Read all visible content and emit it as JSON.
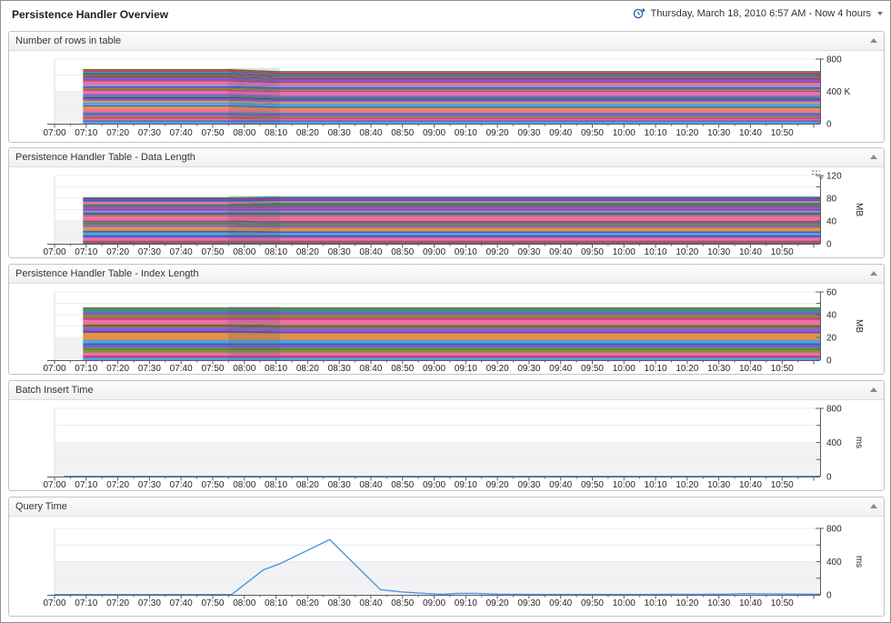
{
  "header": {
    "title": "Persistence Handler Overview",
    "timeframe": "Thursday, March 18, 2010 6:57 AM - Now 4 hours",
    "clock_icon": "clock-forward-icon"
  },
  "xaxis": {
    "labels": [
      "07:00",
      "07:10",
      "07:20",
      "07:30",
      "07:40",
      "07:50",
      "08:00",
      "08:10",
      "08:20",
      "08:30",
      "08:40",
      "08:50",
      "09:00",
      "09:10",
      "09:20",
      "09:30",
      "09:40",
      "09:50",
      "10:00",
      "10:10",
      "10:20",
      "10:30",
      "10:40",
      "10:50"
    ],
    "minor_tick_minutes": 5,
    "major_tick_minutes": 10
  },
  "panels": [
    {
      "title": "Number of rows in table",
      "chart": {
        "type": "stacked-area",
        "unit": "",
        "ymax": 800,
        "yticks": [
          [
            0,
            "0"
          ],
          [
            200,
            ""
          ],
          [
            400,
            "400 K"
          ],
          [
            600,
            ""
          ],
          [
            800,
            "800"
          ]
        ],
        "gray_to": 400,
        "data_start_min": 9,
        "transition": [
          55,
          70
        ],
        "stack_top_approx": 678,
        "stripes": [
          [
            "#4da3e8",
            28
          ],
          [
            "#5a4aa0",
            14
          ],
          [
            "#e86aa0",
            22,
            16
          ],
          [
            "#c23a7a",
            16
          ],
          [
            "#8a8a32",
            20
          ],
          [
            "#7a5ad0",
            30
          ],
          [
            "#4a8a8a",
            14
          ],
          [
            "#ee6fa5",
            36,
            26
          ],
          [
            "#e8923a",
            32
          ],
          [
            "#3a5fae",
            16
          ],
          [
            "#4da3e8",
            36,
            40
          ],
          [
            "#e8923a",
            20
          ],
          [
            "#7a5ad0",
            32,
            26
          ],
          [
            "#5a3a7a",
            14
          ],
          [
            "#2e8a6a",
            16
          ],
          [
            "#8a62c9",
            24
          ],
          [
            "#ee6fa5",
            34,
            40
          ],
          [
            "#c2408f",
            18
          ],
          [
            "#8a8a32",
            20
          ],
          [
            "#6a4ab0",
            22
          ],
          [
            "#4da3e8",
            18
          ],
          [
            "#ee6fa5",
            40,
            34
          ],
          [
            "#b43a6a",
            18
          ],
          [
            "#7a5ad0",
            32,
            30
          ],
          [
            "#9a3a4a",
            14
          ],
          [
            "#5a8a3a",
            18,
            12
          ],
          [
            "#8a3a8a",
            16
          ],
          [
            "#2e8a8a",
            20
          ],
          [
            "#c23a7a",
            20
          ],
          [
            "#6b6b2a",
            18
          ]
        ]
      }
    },
    {
      "title": "Persistence Handler Table - Data Length",
      "has_options_icon": true,
      "chart": {
        "type": "stacked-area",
        "unit": "MB",
        "ymax": 120,
        "yticks": [
          [
            0,
            "0"
          ],
          [
            20,
            ""
          ],
          [
            40,
            "40"
          ],
          [
            60,
            ""
          ],
          [
            80,
            "80"
          ],
          [
            100,
            ""
          ],
          [
            120,
            "120"
          ]
        ],
        "gray_to": 40,
        "data_start_min": 9,
        "transition": [
          55,
          70
        ],
        "stack_top_approx": 82,
        "stripes": [
          [
            "#6b6b2a",
            3
          ],
          [
            "#c2408f",
            3
          ],
          [
            "#ee6fa5",
            4
          ],
          [
            "#7a5ad0",
            3
          ],
          [
            "#4a3a6a",
            2
          ],
          [
            "#4da3e8",
            5,
            4
          ],
          [
            "#3a5fae",
            3
          ],
          [
            "#e8923a",
            6
          ],
          [
            "#8a62c9",
            4
          ],
          [
            "#5a8a3a",
            3
          ],
          [
            "#2e8a8a",
            2
          ],
          [
            "#b43a6a",
            3
          ],
          [
            "#ee6fa5",
            7,
            8
          ],
          [
            "#8a8a32",
            3
          ],
          [
            "#6a4ab0",
            4
          ],
          [
            "#4da3e8",
            3
          ],
          [
            "#c23a7a",
            3
          ],
          [
            "#7a5ad0",
            4
          ],
          [
            "#9a3a4a",
            2
          ],
          [
            "#2e8a6a",
            3,
            5
          ],
          [
            "#ee6fa5",
            4,
            3
          ],
          [
            "#3a5fae",
            3
          ],
          [
            "#8a3a8a",
            3
          ],
          [
            "#2e8a8a",
            2
          ]
        ]
      }
    },
    {
      "title": "Persistence Handler Table - Index Length",
      "chart": {
        "type": "stacked-area",
        "unit": "MB",
        "ymax": 60,
        "yticks": [
          [
            0,
            "0"
          ],
          [
            10,
            ""
          ],
          [
            20,
            "20"
          ],
          [
            30,
            ""
          ],
          [
            40,
            "40"
          ],
          [
            50,
            ""
          ],
          [
            60,
            "60"
          ]
        ],
        "gray_to": 20,
        "data_start_min": 9,
        "transition": [
          55,
          70
        ],
        "stack_top_approx": 47,
        "stripes": [
          [
            "#4da3e8",
            2
          ],
          [
            "#c2408f",
            2
          ],
          [
            "#ee6fa5",
            2.5
          ],
          [
            "#8a8a32",
            2
          ],
          [
            "#5a8a3a",
            2.5
          ],
          [
            "#7a5ad0",
            2
          ],
          [
            "#3a5fae",
            2
          ],
          [
            "#4da3e8",
            3
          ],
          [
            "#e8923a",
            6,
            5.5
          ],
          [
            "#6a4ab0",
            2
          ],
          [
            "#8a62c9",
            3
          ],
          [
            "#6b6b2a",
            2.5
          ],
          [
            "#ee6fa5",
            4,
            4.5
          ],
          [
            "#c23a7a",
            2
          ],
          [
            "#8a8a32",
            2.5
          ],
          [
            "#7a5ad0",
            2.5
          ],
          [
            "#2e8a8a",
            2
          ],
          [
            "#5a8a3a",
            2
          ]
        ]
      }
    },
    {
      "title": "Batch Insert Time",
      "chart": {
        "type": "line",
        "unit": "ms",
        "ymax": 800,
        "yticks": [
          [
            0,
            "0"
          ],
          [
            200,
            ""
          ],
          [
            400,
            "400"
          ],
          [
            600,
            ""
          ],
          [
            800,
            "800"
          ]
        ],
        "gray_to": 400,
        "line_color": "#4d97e0",
        "line": [
          [
            3,
            3
          ],
          [
            242,
            3
          ]
        ]
      }
    },
    {
      "title": "Query Time",
      "chart": {
        "type": "line",
        "unit": "ms",
        "ymax": 800,
        "yticks": [
          [
            0,
            "0"
          ],
          [
            200,
            ""
          ],
          [
            400,
            "400"
          ],
          [
            600,
            ""
          ],
          [
            800,
            "800"
          ]
        ],
        "gray_to": 400,
        "line_color": "#4d97e0",
        "line": [
          [
            0,
            3
          ],
          [
            56,
            3
          ],
          [
            66,
            300
          ],
          [
            71,
            370
          ],
          [
            87,
            665
          ],
          [
            103,
            62
          ],
          [
            110,
            34
          ],
          [
            118,
            14
          ],
          [
            123,
            7
          ],
          [
            127,
            16
          ],
          [
            133,
            17
          ],
          [
            140,
            8
          ],
          [
            147,
            5
          ],
          [
            155,
            4
          ],
          [
            165,
            4
          ],
          [
            175,
            4
          ],
          [
            185,
            4
          ],
          [
            195,
            5
          ],
          [
            205,
            5
          ],
          [
            212,
            8
          ],
          [
            218,
            14
          ],
          [
            226,
            12
          ],
          [
            233,
            9
          ],
          [
            242,
            7
          ]
        ]
      }
    }
  ]
}
